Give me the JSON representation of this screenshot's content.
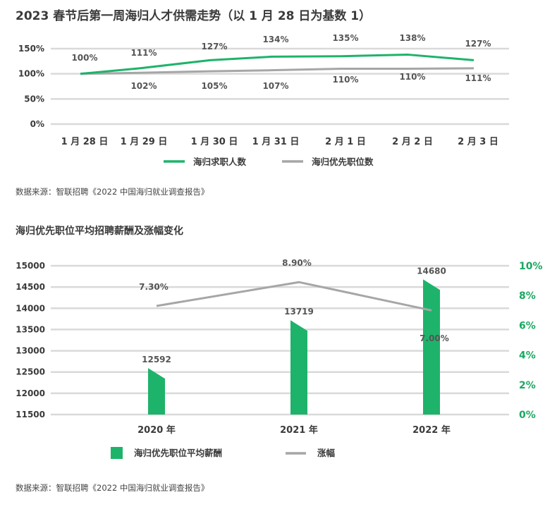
{
  "chart_data": [
    {
      "type": "line",
      "title": "2023 春节后第一周海归人才供需走势（以 1 月 28 日为基数 1）",
      "categories": [
        "1 月 28 日",
        "1 月 29 日",
        "1 月 30 日",
        "1 月 31 日",
        "2 月 1 日",
        "2 月 2 日",
        "2 月 3 日"
      ],
      "ylim": [
        0,
        150
      ],
      "yticks": [
        "0%",
        "50%",
        "100%",
        "150%"
      ],
      "grid": true,
      "legend": "bottom",
      "series": [
        {
          "name": "海归求职人数",
          "color": "#1eb36b",
          "values": [
            100,
            111,
            127,
            134,
            135,
            138,
            127
          ],
          "labels": [
            "100%",
            "111%",
            "127%",
            "134%",
            "135%",
            "138%",
            "127%"
          ]
        },
        {
          "name": "海归优先职位数",
          "color": "#a6a6a6",
          "values": [
            100,
            102,
            105,
            107,
            110,
            110,
            111
          ],
          "labels": [
            "",
            "102%",
            "105%",
            "107%",
            "110%",
            "110%",
            "111%"
          ]
        }
      ],
      "source": "数据来源：智联招聘《2022 中国海归就业调查报告》"
    },
    {
      "type": "bar",
      "title": "海归优先职位平均招聘薪酬及涨幅变化",
      "categories": [
        "2020 年",
        "2021 年",
        "2022 年"
      ],
      "ylim": [
        11500,
        15000
      ],
      "yticks": [
        "15000",
        "14500",
        "14000",
        "13500",
        "13000",
        "12500",
        "12000",
        "11500"
      ],
      "y2lim": [
        0,
        10
      ],
      "y2ticks": [
        "10%",
        "8%",
        "6%",
        "4%",
        "2%",
        "0%"
      ],
      "grid": true,
      "legend": "bottom",
      "series": [
        {
          "name": "海归优先职位平均薪酬",
          "type": "bar",
          "axis": "left",
          "color": "#1eb36b",
          "values": [
            12592,
            13719,
            14680
          ],
          "labels": [
            "12592",
            "13719",
            "14680"
          ]
        },
        {
          "name": "涨幅",
          "type": "line",
          "axis": "right",
          "color": "#a6a6a6",
          "values": [
            7.3,
            8.9,
            7.0
          ],
          "labels": [
            "7.30%",
            "8.90%",
            "7.00%"
          ]
        }
      ],
      "source": "数据来源：智联招聘《2022 中国海归就业调查报告》"
    }
  ]
}
